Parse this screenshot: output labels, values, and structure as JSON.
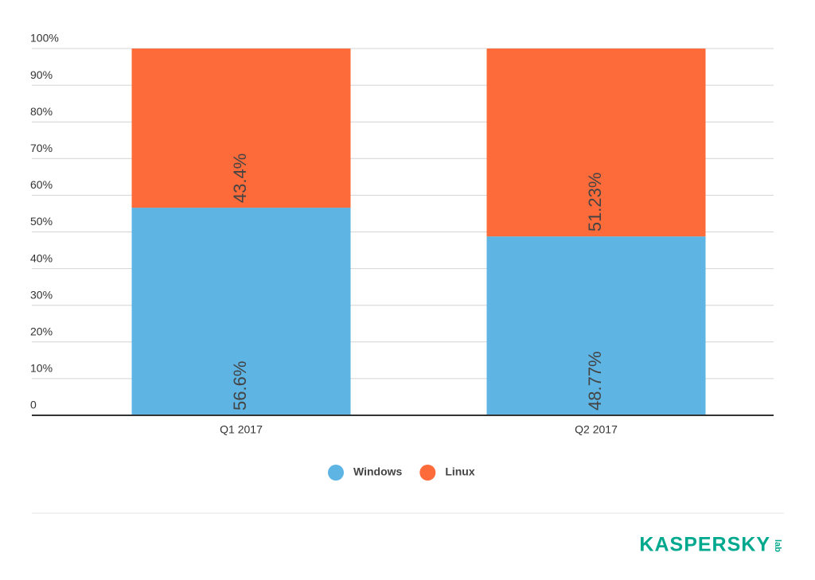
{
  "chart_data": {
    "type": "stacked_bar",
    "categories": [
      "Q1 2017",
      "Q2 2017"
    ],
    "series": [
      {
        "name": "Windows",
        "color": "#5eb4e3",
        "values": [
          56.6,
          48.77
        ],
        "value_labels": [
          "56.6%",
          "48.77%"
        ]
      },
      {
        "name": "Linux",
        "color": "#fe6b3a",
        "values": [
          43.4,
          51.23
        ],
        "value_labels": [
          "43.4%",
          "51.23%"
        ]
      }
    ],
    "ylim": [
      0,
      100
    ],
    "yticks": [
      0,
      {
        "value": 10,
        "label": "10%"
      },
      {
        "value": 20,
        "label": "20%"
      },
      {
        "value": 30,
        "label": "30%"
      },
      {
        "value": 40,
        "label": "40%"
      },
      {
        "value": 50,
        "label": "50%"
      },
      {
        "value": 60,
        "label": "60%"
      },
      {
        "value": 70,
        "label": "70%"
      },
      {
        "value": 80,
        "label": "80%"
      },
      {
        "value": 90,
        "label": "90%"
      },
      {
        "value": 100,
        "label": "100%"
      }
    ],
    "grid": true,
    "legend": "bottom"
  },
  "logo": {
    "name": "KASPERSKY",
    "sub": "lab"
  }
}
